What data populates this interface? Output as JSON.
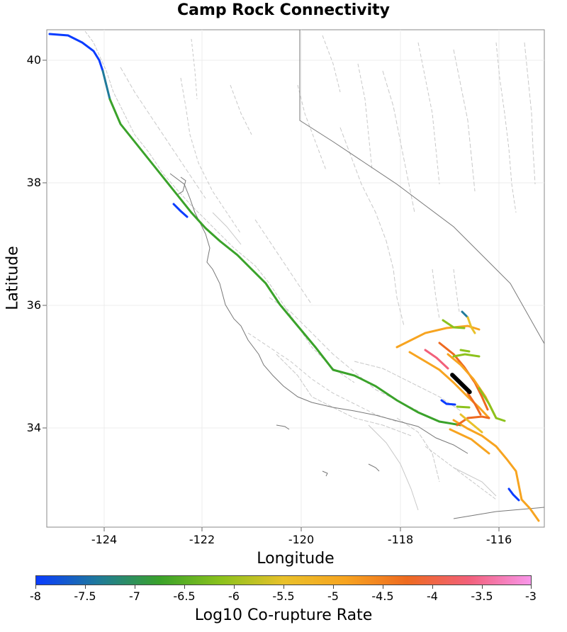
{
  "title": "Camp Rock Connectivity",
  "x_axis": {
    "label": "Longitude",
    "ticks": [
      "-124",
      "-122",
      "-120",
      "-118",
      "-116"
    ]
  },
  "y_axis": {
    "label": "Latitude",
    "ticks": [
      "40",
      "38",
      "36",
      "34"
    ]
  },
  "colorbar": {
    "label": "Log10 Co-rupture Rate",
    "ticks": [
      "-8",
      "-7.5",
      "-7",
      "-6.5",
      "-6",
      "-5.5",
      "-5",
      "-4.5",
      "-4",
      "-3.5",
      "-3"
    ],
    "colors": [
      "#0a3cff",
      "#1f7a9a",
      "#3aa22a",
      "#8cc21c",
      "#e9c12a",
      "#f7a420",
      "#ee6a20",
      "#f2607a",
      "#f896ea"
    ]
  },
  "map_data": {
    "lon_range": [
      -125.1,
      -115.1
    ],
    "lat_range": [
      32.4,
      40.5
    ],
    "highlight_color": "#000000",
    "highlight_rupture": [
      [
        -116.95,
        34.88
      ],
      [
        -116.6,
        34.6
      ]
    ]
  }
}
